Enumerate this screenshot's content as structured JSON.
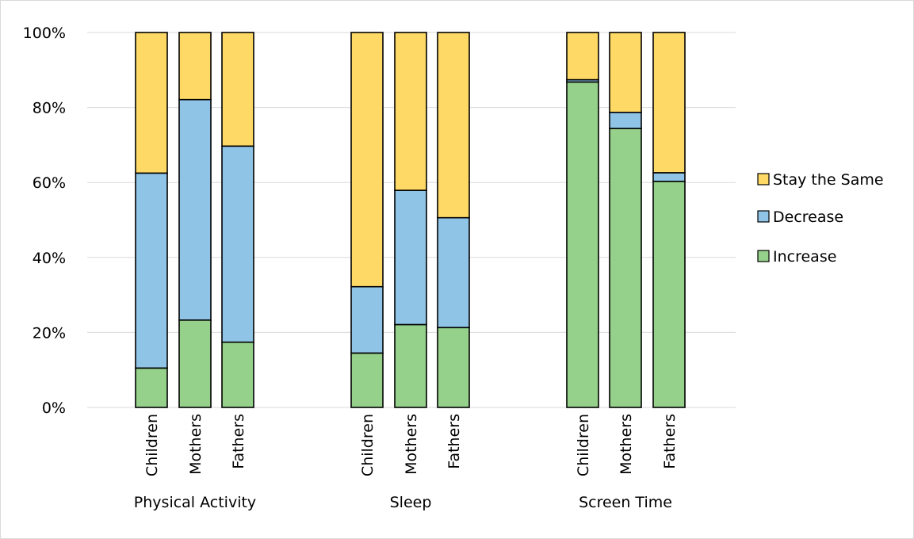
{
  "chart_data": {
    "type": "bar",
    "stacked": true,
    "title": "",
    "xlabel": "",
    "ylabel": "",
    "ylim": [
      0,
      100
    ],
    "yticks": [
      "0%",
      "20%",
      "40%",
      "60%",
      "80%",
      "100%"
    ],
    "grid": true,
    "legend_position": "right",
    "groups": [
      {
        "label": "Physical Activity",
        "categories": [
          "Children",
          "Mothers",
          "Fathers"
        ]
      },
      {
        "label": "Sleep",
        "categories": [
          "Children",
          "Mothers",
          "Fathers"
        ]
      },
      {
        "label": "Screen Time",
        "categories": [
          "Children",
          "Mothers",
          "Fathers"
        ]
      }
    ],
    "series": [
      {
        "name": "Increase",
        "color": "#95d18a",
        "values": [
          10.5,
          23.3,
          17.4,
          14.5,
          22.1,
          21.3,
          86.8,
          74.4,
          60.3
        ]
      },
      {
        "name": "Decrease",
        "color": "#8fc4e6",
        "values": [
          52.0,
          58.8,
          52.3,
          17.7,
          35.8,
          29.3,
          0.6,
          4.3,
          2.3
        ]
      },
      {
        "name": "Stay the Same",
        "color": "#ffd966",
        "values": [
          37.5,
          17.9,
          30.3,
          67.8,
          42.1,
          49.4,
          12.6,
          21.3,
          37.4
        ]
      }
    ],
    "legend_order": [
      "Stay the Same",
      "Decrease",
      "Increase"
    ]
  }
}
